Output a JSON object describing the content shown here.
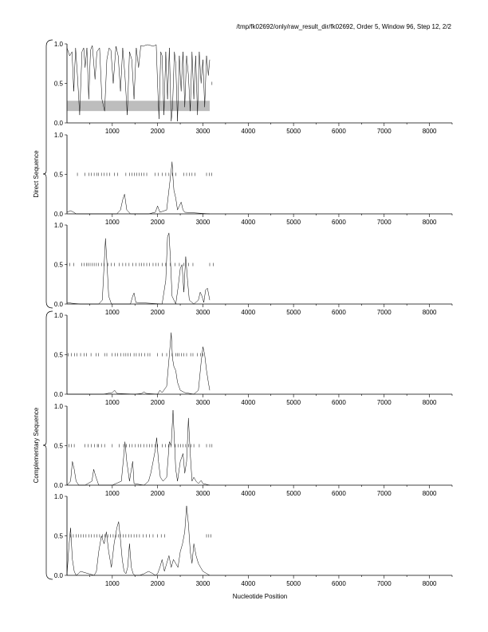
{
  "header": {
    "title": "/tmp/fk02692/only/raw_result_dir/fk02692, Order 5, Window 96, Step 12, 2/2"
  },
  "chart_data": {
    "type": "line",
    "xlabel": "Nucleotide Position",
    "xlim": [
      0,
      8500
    ],
    "ylim": [
      0,
      1
    ],
    "x_ticks": [
      1000,
      2000,
      3000,
      4000,
      5000,
      6000,
      7000,
      8000
    ],
    "x_tick_labels": [
      "1000",
      "2000",
      "3000",
      "4000",
      "5000",
      "6000",
      "7000",
      "8000"
    ],
    "y_ticks": [
      0,
      0.5,
      1
    ],
    "y_tick_labels": [
      "0.0",
      "0.5",
      "1.0"
    ],
    "sequence_length": 3150,
    "group_labels": [
      "Direct Sequence",
      "Complementary Sequence"
    ],
    "panels": [
      {
        "group": "Direct Sequence",
        "highlight_band": {
          "x": [
            0,
            3150
          ],
          "y": [
            0.15,
            0.28
          ],
          "color": "#bdbdbd"
        },
        "stop_codon_y": 0.5,
        "stop_codons": [
          3200
        ],
        "series": [
          {
            "x": [
              0,
              60,
              110,
              150,
              190,
              230,
              280,
              330,
              370,
              400,
              440,
              480,
              520,
              560,
              620,
              660,
              720,
              770,
              830,
              880,
              930,
              970,
              1020,
              1080,
              1130,
              1180,
              1230,
              1280,
              1330,
              1380,
              1430,
              1480,
              1530,
              1580,
              1630,
              1680,
              1720,
              1780,
              1850,
              1900,
              1940,
              1970,
              2000,
              2030,
              2070,
              2100,
              2140,
              2180,
              2220,
              2260,
              2300,
              2330,
              2370,
              2400,
              2440,
              2480,
              2520,
              2560,
              2600,
              2640,
              2680,
              2720,
              2760,
              2800,
              2840,
              2880,
              2920,
              2960,
              3000,
              3040,
              3080,
              3120,
              3150
            ],
            "y": [
              0.95,
              0.85,
              0.9,
              0.4,
              0.95,
              0.6,
              0.1,
              0.9,
              0.95,
              0.7,
              0.95,
              0.3,
              0.92,
              0.98,
              0.55,
              0.9,
              0.95,
              0.3,
              0.15,
              0.8,
              0.95,
              0.92,
              0.5,
              0.97,
              0.85,
              0.4,
              0.95,
              0.6,
              0.1,
              0.9,
              0.8,
              0.3,
              0.95,
              0.7,
              0.98,
              0.97,
              0.98,
              0.99,
              0.98,
              0.97,
              0.98,
              0.99,
              0.5,
              0.05,
              0.9,
              0.85,
              0.1,
              0.9,
              0.3,
              0.95,
              0.02,
              0.2,
              0.9,
              0.75,
              0.02,
              0.85,
              0.4,
              0.9,
              0.2,
              0.85,
              0.6,
              0.15,
              0.9,
              0.3,
              0.85,
              0.1,
              0.9,
              0.5,
              0.8,
              0.2,
              0.85,
              0.6,
              0.8
            ]
          }
        ]
      },
      {
        "group": "Direct Sequence",
        "stop_codon_y": 0.5,
        "stop_codons": [
          230,
          400,
          480,
          540,
          600,
          660,
          700,
          760,
          820,
          880,
          940,
          1050,
          1120,
          1300,
          1380,
          1430,
          1490,
          1540,
          1590,
          1650,
          1700,
          1760,
          1940,
          2020,
          2100,
          2180,
          2250,
          2330,
          2400,
          2580,
          2640,
          2700,
          2760,
          2820,
          3080,
          3140,
          3190
        ],
        "series": [
          {
            "x": [
              0,
              80,
              150,
              200,
              400,
              800,
              1100,
              1180,
              1230,
              1270,
              1320,
              1400,
              1800,
              1950,
              2000,
              2050,
              2200,
              2260,
              2300,
              2320,
              2340,
              2360,
              2400,
              2440,
              2480,
              2520,
              2560,
              2600,
              3150
            ],
            "y": [
              0.02,
              0.04,
              0.02,
              0.0,
              0.0,
              0.0,
              0.0,
              0.05,
              0.18,
              0.25,
              0.05,
              0.0,
              0.0,
              0.02,
              0.1,
              0.02,
              0.05,
              0.35,
              0.55,
              0.66,
              0.45,
              0.3,
              0.2,
              0.05,
              0.1,
              0.15,
              0.05,
              0.02,
              0.0
            ]
          }
        ]
      },
      {
        "group": "Direct Sequence",
        "stop_codon_y": 0.5,
        "stop_codons": [
          0,
          60,
          150,
          330,
          380,
          430,
          470,
          510,
          560,
          600,
          650,
          700,
          760,
          820,
          900,
          980,
          1050,
          1150,
          1230,
          1300,
          1370,
          1450,
          1520,
          1600,
          1650,
          1700,
          1760,
          1820,
          1900,
          1960,
          2020,
          2100,
          2180,
          2280,
          2380,
          2480,
          2580,
          2680,
          2780,
          3150,
          3230
        ],
        "series": [
          {
            "x": [
              0,
              100,
              300,
              700,
              780,
              820,
              850,
              880,
              920,
              980,
              1400,
              1450,
              1480,
              1520,
              2100,
              2180,
              2220,
              2250,
              2280,
              2320,
              2400,
              2450,
              2500,
              2540,
              2580,
              2620,
              2660,
              2700,
              2800,
              2900,
              2940,
              2980,
              3020,
              3060,
              3100,
              3150
            ],
            "y": [
              0.02,
              0.01,
              0.0,
              0.0,
              0.05,
              0.5,
              0.83,
              0.55,
              0.1,
              0.0,
              0.0,
              0.1,
              0.14,
              0.02,
              0.0,
              0.3,
              0.85,
              0.9,
              0.6,
              0.1,
              0.0,
              0.2,
              0.45,
              0.5,
              0.15,
              0.6,
              0.3,
              0.05,
              0.0,
              0.05,
              0.15,
              0.1,
              0.02,
              0.18,
              0.2,
              0.05
            ]
          }
        ]
      },
      {
        "group": "Complementary Sequence",
        "stop_codon_y": 0.5,
        "stop_codons": [
          30,
          100,
          170,
          220,
          300,
          380,
          430,
          530,
          640,
          700,
          830,
          880,
          990,
          1060,
          1120,
          1190,
          1250,
          1300,
          1350,
          1400,
          1480,
          1530,
          1590,
          1650,
          1720,
          1780,
          1830,
          2000,
          2100,
          2200,
          2320,
          2400,
          2440,
          2470,
          2530,
          2580,
          2640,
          2730,
          2780,
          2880,
          2950,
          3000
        ],
        "series": [
          {
            "x": [
              0,
              400,
              800,
              1000,
              1050,
              1100,
              1500,
              1650,
              1700,
              1750,
              2000,
              2050,
              2100,
              2200,
              2260,
              2300,
              2330,
              2360,
              2400,
              2440,
              2500,
              2600,
              2800,
              2900,
              2960,
              3000,
              3040,
              3080,
              3120,
              3150
            ],
            "y": [
              0.0,
              0.0,
              0.0,
              0.02,
              0.05,
              0.01,
              0.0,
              0.01,
              0.03,
              0.01,
              0.0,
              0.05,
              0.02,
              0.1,
              0.5,
              0.78,
              0.45,
              0.35,
              0.3,
              0.15,
              0.05,
              0.02,
              0.0,
              0.05,
              0.4,
              0.6,
              0.5,
              0.3,
              0.15,
              0.05
            ]
          }
        ]
      },
      {
        "group": "Complementary Sequence",
        "stop_codon_y": 0.5,
        "stop_codons": [
          40,
          100,
          160,
          400,
          470,
          540,
          610,
          670,
          700,
          760,
          830,
          1000,
          1150,
          1250,
          1310,
          1380,
          1440,
          1510,
          1570,
          1630,
          1700,
          1760,
          1820,
          1880,
          1940,
          2000,
          2100,
          2170,
          2240,
          2300,
          2390,
          2450,
          2510,
          2560,
          2620,
          2680,
          2740,
          2800,
          2920,
          3080,
          3150,
          3200
        ],
        "series": [
          {
            "x": [
              0,
              80,
              120,
              160,
              200,
              260,
              400,
              550,
              590,
              640,
              700,
              1000,
              1200,
              1250,
              1280,
              1320,
              1380,
              1420,
              1450,
              1480,
              1700,
              1800,
              1850,
              1900,
              1950,
              1980,
              2020,
              2060,
              2120,
              2200,
              2260,
              2300,
              2340,
              2360,
              2400,
              2440,
              2500,
              2560,
              2600,
              2640,
              2680,
              2720,
              2760,
              2800,
              2850,
              2900,
              2960,
              3000,
              3150
            ],
            "y": [
              0.0,
              0.05,
              0.3,
              0.2,
              0.05,
              0.0,
              0.0,
              0.05,
              0.2,
              0.1,
              0.0,
              0.0,
              0.05,
              0.35,
              0.55,
              0.3,
              0.05,
              0.2,
              0.3,
              0.02,
              0.0,
              0.05,
              0.15,
              0.3,
              0.45,
              0.6,
              0.3,
              0.1,
              0.05,
              0.1,
              0.55,
              0.5,
              0.95,
              0.7,
              0.2,
              0.05,
              0.3,
              0.4,
              0.15,
              0.3,
              0.85,
              0.4,
              0.05,
              0.1,
              0.05,
              0.02,
              0.06,
              0.02,
              0.0
            ]
          }
        ]
      },
      {
        "group": "Complementary Sequence",
        "stop_codon_y": 0.5,
        "stop_codons": [
          80,
          140,
          200,
          260,
          310,
          360,
          420,
          480,
          540,
          600,
          660,
          720,
          780,
          840,
          900,
          960,
          1020,
          1080,
          1130,
          1180,
          1240,
          1300,
          1360,
          1420,
          1480,
          1540,
          1600,
          1680,
          1750,
          1820,
          1900,
          2000,
          2080,
          2160,
          3080,
          3130,
          3180
        ],
        "series": [
          {
            "x": [
              0,
              40,
              80,
              120,
              160,
              200,
              250,
              300,
              600,
              650,
              700,
              760,
              820,
              870,
              920,
              980,
              1040,
              1100,
              1140,
              1180,
              1220,
              1260,
              1300,
              1340,
              1380,
              1420,
              1460,
              1500,
              1600,
              1700,
              1800,
              1900,
              1950,
              2000,
              2050,
              2100,
              2150,
              2200,
              2250,
              2300,
              2350,
              2400,
              2450,
              2500,
              2550,
              2600,
              2640,
              2680,
              2720,
              2760,
              2800,
              2850,
              2900,
              2950,
              3000,
              3150
            ],
            "y": [
              0.0,
              0.35,
              0.6,
              0.2,
              0.05,
              0.0,
              0.02,
              0.05,
              0.0,
              0.05,
              0.3,
              0.5,
              0.4,
              0.55,
              0.3,
              0.1,
              0.4,
              0.6,
              0.68,
              0.45,
              0.2,
              0.05,
              0.02,
              0.1,
              0.4,
              0.1,
              0.02,
              0.0,
              0.0,
              0.02,
              0.05,
              0.02,
              0.0,
              0.02,
              0.1,
              0.2,
              0.05,
              0.15,
              0.25,
              0.1,
              0.2,
              0.15,
              0.1,
              0.3,
              0.4,
              0.55,
              0.88,
              0.65,
              0.3,
              0.15,
              0.4,
              0.25,
              0.15,
              0.1,
              0.05,
              0.0
            ]
          }
        ]
      }
    ]
  }
}
